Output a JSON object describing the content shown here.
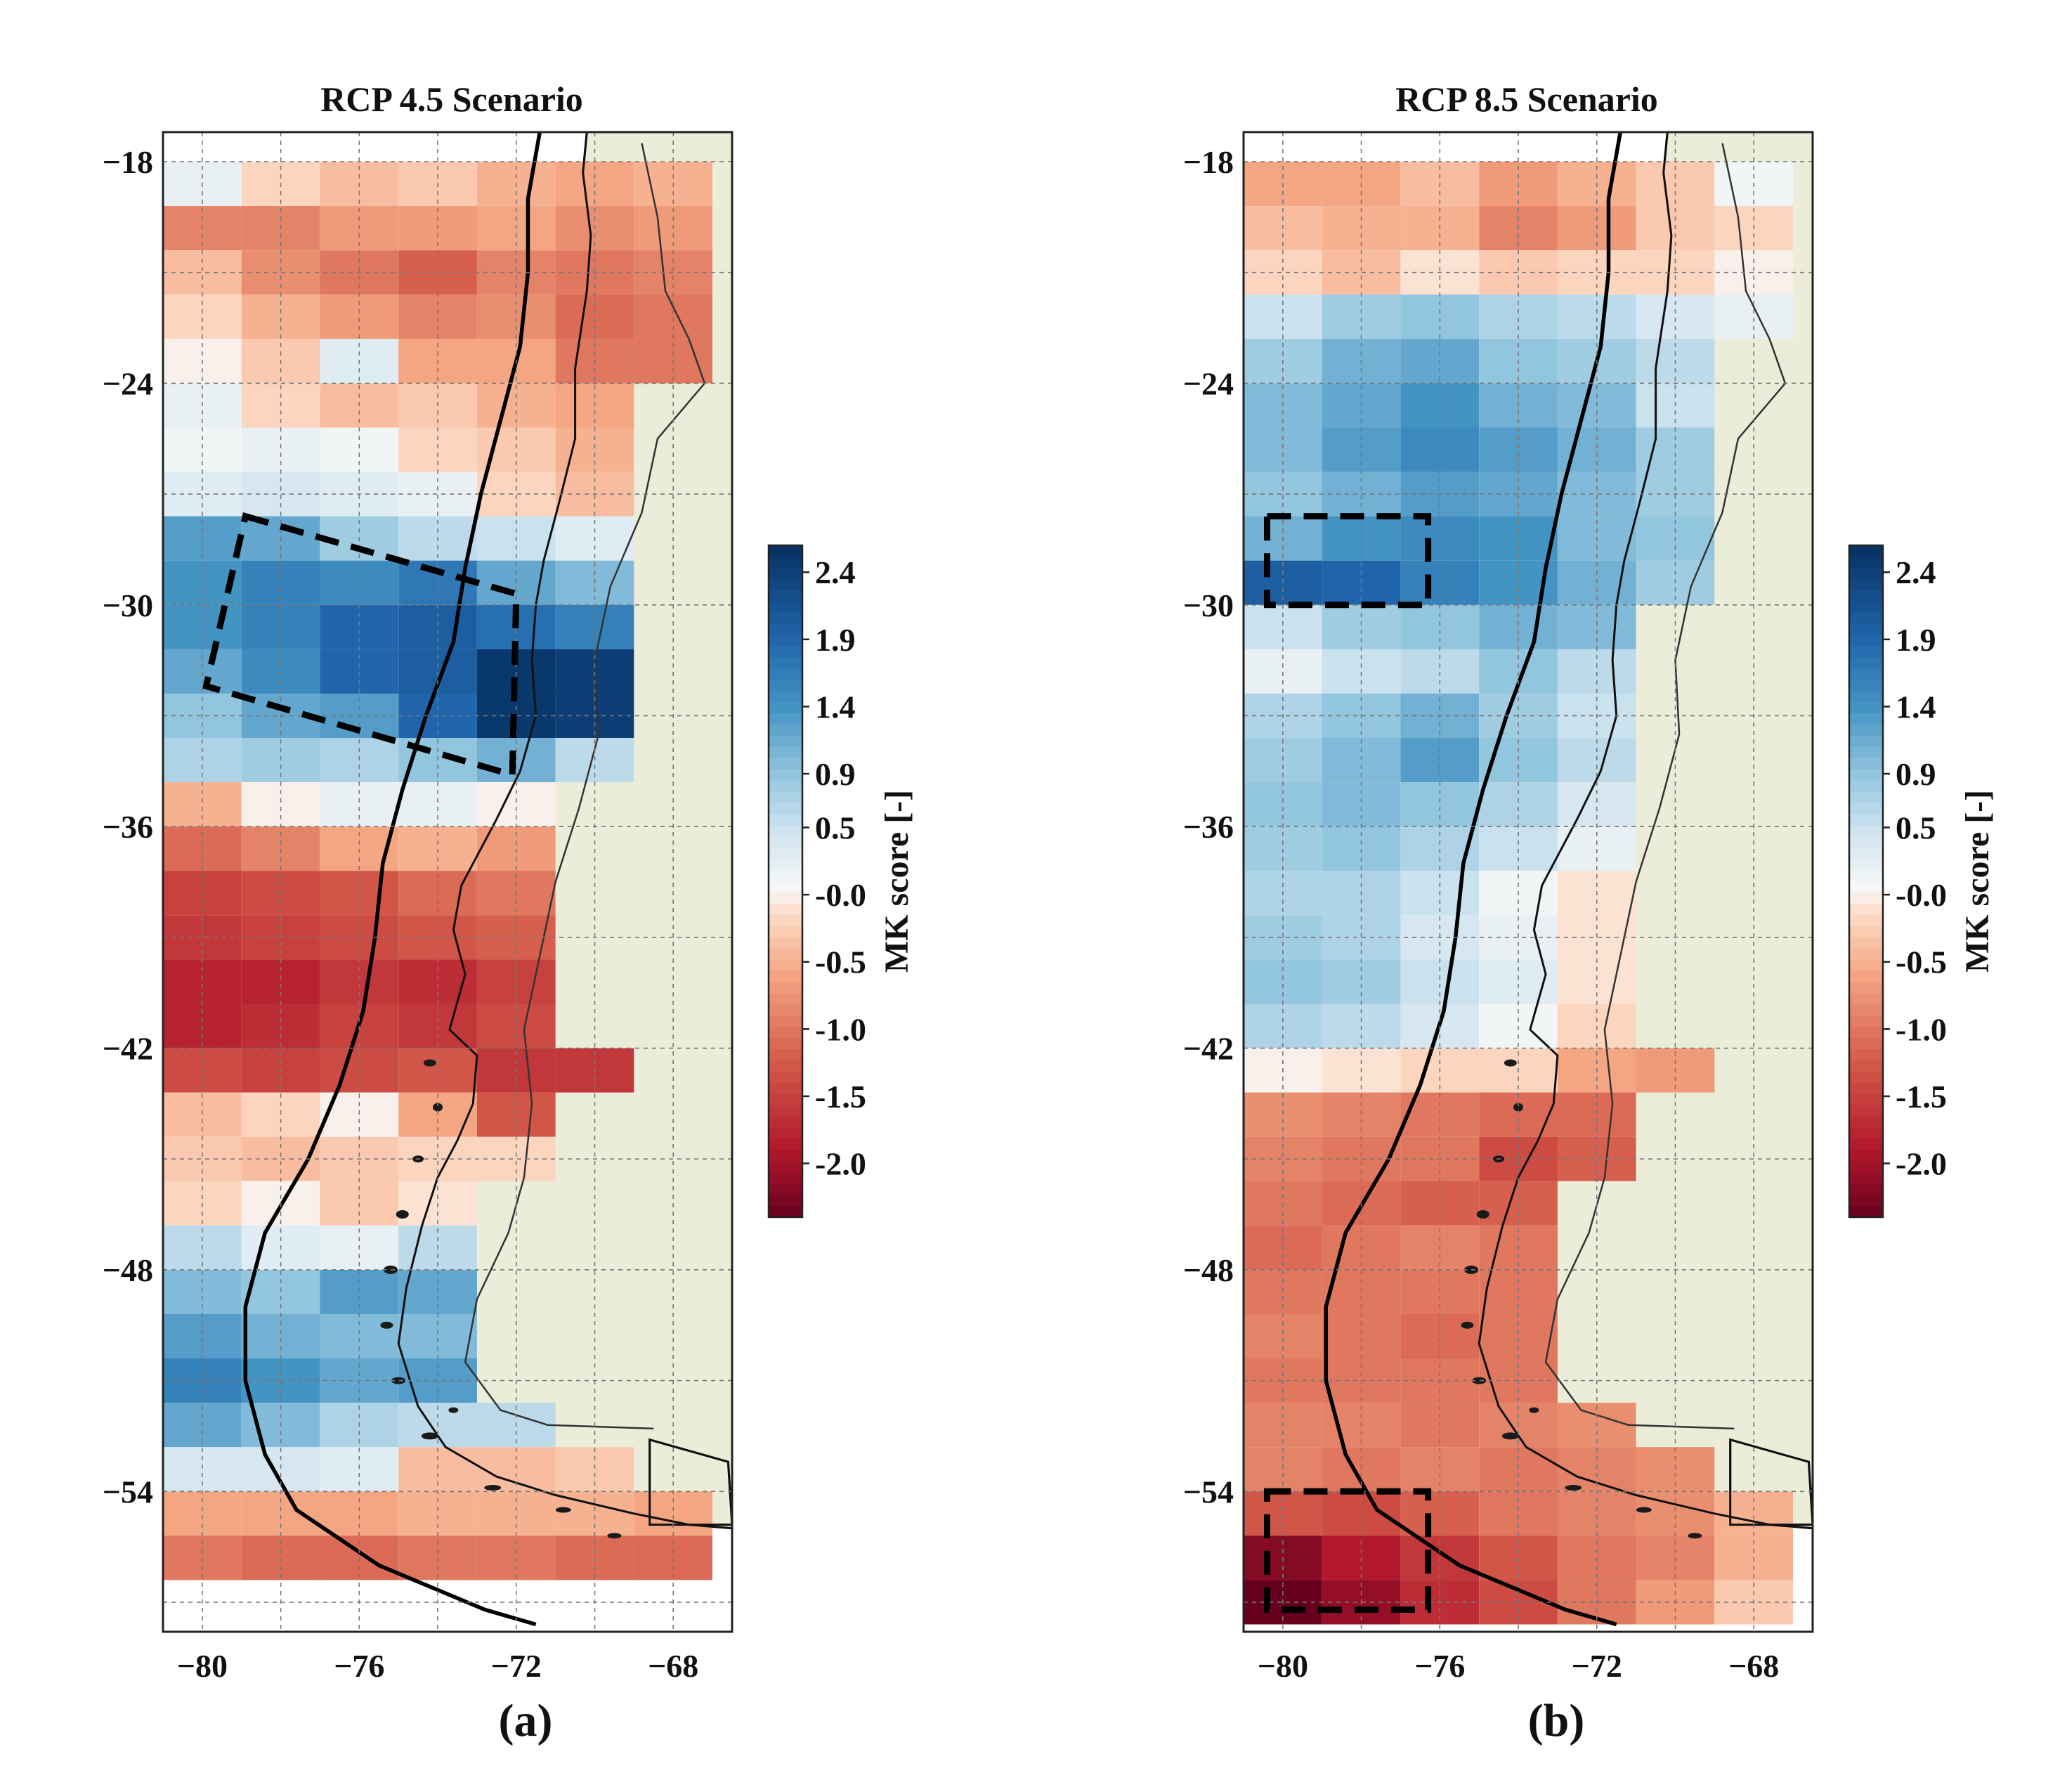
{
  "figure": {
    "panels": [
      {
        "label": "(a)",
        "title": "RCP 4.5 Scenario",
        "colorbar_label": "MK score [-]"
      },
      {
        "label": "(b)",
        "title": "RCP 8.5 Scenario",
        "colorbar_label": "MK score [-]"
      }
    ],
    "colors": {
      "land": "#ecedd9",
      "ocean": "#ffffff",
      "coast": "#111111",
      "frame": "#222222"
    }
  },
  "chart_data": [
    {
      "type": "heatmap",
      "title": "RCP 4.5 Scenario",
      "panel_label": "(a)",
      "colorbar_label": "MK score [-]",
      "colorbar_ticks": [
        "2.4",
        "1.9",
        "1.4",
        "0.9",
        "0.5",
        "-0.0",
        "-0.5",
        "-1.0",
        "-1.5",
        "-2.0"
      ],
      "colorbar_range": [
        -2.4,
        2.6
      ],
      "x_ticks": [
        "−80",
        "−76",
        "−72",
        "−68"
      ],
      "y_ticks": [
        "−18",
        "−24",
        "−30",
        "−36",
        "−42",
        "−48",
        "−54"
      ],
      "lon_range": [
        -81,
        -66.5
      ],
      "lat_range": [
        -57.8,
        -17.2
      ],
      "grid_step_lon": 2,
      "grid_step_lat": 1.2,
      "lat_bands": [
        {
          "lat": [
            -19.2,
            -18.0
          ],
          "values": [
            0.2,
            -0.2,
            -0.4,
            -0.3,
            -0.5,
            -0.6,
            -0.5
          ]
        },
        {
          "lat": [
            -20.4,
            -19.2
          ],
          "values": [
            -0.9,
            -0.9,
            -0.7,
            -0.7,
            -0.6,
            -0.8,
            -0.7
          ]
        },
        {
          "lat": [
            -21.6,
            -20.4
          ],
          "values": [
            -0.4,
            -0.8,
            -1.0,
            -1.2,
            -0.9,
            -1.0,
            -0.9
          ]
        },
        {
          "lat": [
            -22.8,
            -21.6
          ],
          "values": [
            -0.2,
            -0.5,
            -0.7,
            -0.9,
            -0.8,
            -1.1,
            -1.0
          ]
        },
        {
          "lat": [
            -24.0,
            -22.8
          ],
          "values": [
            0.0,
            -0.3,
            0.3,
            -0.6,
            -0.6,
            -1.0,
            -1.0
          ]
        },
        {
          "lat": [
            -25.2,
            -24.0
          ],
          "values": [
            0.2,
            -0.2,
            -0.4,
            -0.3,
            -0.5,
            -0.6,
            null
          ]
        },
        {
          "lat": [
            -26.4,
            -25.2
          ],
          "values": [
            0.1,
            0.2,
            0.1,
            -0.2,
            -0.3,
            -0.5,
            null
          ]
        },
        {
          "lat": [
            -27.6,
            -26.4
          ],
          "values": [
            0.3,
            0.4,
            0.3,
            0.2,
            -0.2,
            -0.4,
            null
          ]
        },
        {
          "lat": [
            -28.8,
            -27.6
          ],
          "values": [
            1.3,
            1.2,
            0.8,
            0.6,
            0.5,
            0.3,
            null
          ]
        },
        {
          "lat": [
            -30.0,
            -28.8
          ],
          "values": [
            1.4,
            1.6,
            1.5,
            1.7,
            1.2,
            1.0,
            null
          ]
        },
        {
          "lat": [
            -31.2,
            -30.0
          ],
          "values": [
            1.4,
            1.6,
            1.9,
            2.0,
            1.8,
            1.6,
            null
          ]
        },
        {
          "lat": [
            -32.4,
            -31.2
          ],
          "values": [
            1.2,
            1.5,
            1.9,
            2.0,
            2.5,
            2.4,
            null
          ]
        },
        {
          "lat": [
            -33.6,
            -32.4
          ],
          "values": [
            0.9,
            1.2,
            1.3,
            1.9,
            2.5,
            2.4,
            null
          ]
        },
        {
          "lat": [
            -34.8,
            -33.6
          ],
          "values": [
            0.7,
            0.8,
            0.7,
            0.9,
            1.1,
            0.6,
            null
          ]
        },
        {
          "lat": [
            -36.0,
            -34.8
          ],
          "values": [
            -0.5,
            0.0,
            0.2,
            0.2,
            0.0,
            null,
            null
          ]
        },
        {
          "lat": [
            -37.2,
            -36.0
          ],
          "values": [
            -1.1,
            -0.9,
            -0.6,
            -0.5,
            -0.7,
            null,
            null
          ]
        },
        {
          "lat": [
            -38.4,
            -37.2
          ],
          "values": [
            -1.5,
            -1.4,
            -1.3,
            -1.1,
            -1.0,
            null,
            null
          ]
        },
        {
          "lat": [
            -39.6,
            -38.4
          ],
          "values": [
            -1.6,
            -1.5,
            -1.4,
            -1.3,
            -1.2,
            null,
            null
          ]
        },
        {
          "lat": [
            -40.8,
            -39.6
          ],
          "values": [
            -1.8,
            -1.8,
            -1.6,
            -1.7,
            -1.5,
            null,
            null
          ]
        },
        {
          "lat": [
            -42.0,
            -40.8
          ],
          "values": [
            -1.8,
            -1.7,
            -1.5,
            -1.6,
            -1.4,
            null,
            null
          ]
        },
        {
          "lat": [
            -43.2,
            -42.0
          ],
          "values": [
            -1.4,
            -1.5,
            -1.4,
            -1.3,
            -1.6,
            -1.6,
            null
          ]
        },
        {
          "lat": [
            -44.4,
            -43.2
          ],
          "values": [
            -0.4,
            -0.2,
            0.0,
            -0.6,
            -1.3,
            null,
            null
          ]
        },
        {
          "lat": [
            -45.6,
            -44.4
          ],
          "values": [
            -0.3,
            -0.4,
            -0.3,
            -0.2,
            -0.2,
            null,
            null
          ]
        },
        {
          "lat": [
            -46.8,
            -45.6
          ],
          "values": [
            -0.2,
            0.0,
            -0.3,
            -0.1,
            null,
            null,
            null
          ]
        },
        {
          "lat": [
            -48.0,
            -46.8
          ],
          "values": [
            0.6,
            0.3,
            0.2,
            0.6,
            null,
            null,
            null
          ]
        },
        {
          "lat": [
            -49.2,
            -48.0
          ],
          "values": [
            1.0,
            0.9,
            1.3,
            1.2,
            null,
            null,
            null
          ]
        },
        {
          "lat": [
            -50.4,
            -49.2
          ],
          "values": [
            1.3,
            1.1,
            1.0,
            1.0,
            null,
            null,
            null
          ]
        },
        {
          "lat": [
            -51.6,
            -50.4
          ],
          "values": [
            1.6,
            1.4,
            1.2,
            1.3,
            null,
            null,
            null
          ]
        },
        {
          "lat": [
            -52.8,
            -51.6
          ],
          "values": [
            1.2,
            1.0,
            0.7,
            0.6,
            0.6,
            null,
            null
          ]
        },
        {
          "lat": [
            -54.0,
            -52.8
          ],
          "values": [
            0.4,
            0.4,
            0.3,
            -0.4,
            -0.4,
            -0.3,
            null
          ]
        },
        {
          "lat": [
            -55.2,
            -54.0
          ],
          "values": [
            -0.6,
            -0.6,
            -0.6,
            -0.5,
            -0.5,
            -0.5,
            -0.6
          ]
        },
        {
          "lat": [
            -56.4,
            -55.2
          ],
          "values": [
            -1.0,
            -1.1,
            -1.1,
            -1.0,
            -1.0,
            -1.1,
            -1.1
          ]
        }
      ],
      "highlight_regions": [
        {
          "shape": "rotated-rectangle",
          "corners": [
            [
              -78.9,
              -27.6
            ],
            [
              -72.0,
              -29.7
            ],
            [
              -72.1,
              -34.6
            ],
            [
              -79.9,
              -32.2
            ]
          ],
          "style": "dashed"
        }
      ]
    },
    {
      "type": "heatmap",
      "title": "RCP 8.5 Scenario",
      "panel_label": "(b)",
      "colorbar_label": "MK score [-]",
      "colorbar_ticks": [
        "2.4",
        "1.9",
        "1.4",
        "0.9",
        "0.5",
        "-0.0",
        "-0.5",
        "-1.0",
        "-1.5",
        "-2.0"
      ],
      "colorbar_range": [
        -2.4,
        2.6
      ],
      "x_ticks": [
        "−80",
        "−76",
        "−72",
        "−68"
      ],
      "y_ticks": [
        "−18",
        "−24",
        "−30",
        "−36",
        "−42",
        "−48",
        "−54"
      ],
      "lon_range": [
        -81,
        -66.5
      ],
      "lat_range": [
        -57.8,
        -17.2
      ],
      "grid_step_lon": 2,
      "grid_step_lat": 1.2,
      "lat_bands": [
        {
          "lat": [
            -19.2,
            -18.0
          ],
          "values": [
            -0.6,
            -0.6,
            -0.4,
            -0.7,
            -0.5,
            -0.3,
            0.1
          ]
        },
        {
          "lat": [
            -20.4,
            -19.2
          ],
          "values": [
            -0.4,
            -0.5,
            -0.5,
            -0.9,
            -0.7,
            -0.3,
            -0.2
          ]
        },
        {
          "lat": [
            -21.6,
            -20.4
          ],
          "values": [
            -0.2,
            -0.4,
            -0.1,
            -0.3,
            -0.2,
            -0.2,
            0.0
          ]
        },
        {
          "lat": [
            -22.8,
            -21.6
          ],
          "values": [
            0.5,
            0.8,
            0.9,
            0.7,
            0.6,
            0.4,
            0.2
          ]
        },
        {
          "lat": [
            -24.0,
            -22.8
          ],
          "values": [
            0.8,
            1.1,
            1.2,
            0.9,
            0.8,
            0.6,
            null
          ]
        },
        {
          "lat": [
            -25.2,
            -24.0
          ],
          "values": [
            1.0,
            1.2,
            1.4,
            1.1,
            1.0,
            0.5,
            null
          ]
        },
        {
          "lat": [
            -26.4,
            -25.2
          ],
          "values": [
            1.0,
            1.3,
            1.5,
            1.3,
            1.1,
            0.8,
            null
          ]
        },
        {
          "lat": [
            -27.6,
            -26.4
          ],
          "values": [
            0.9,
            1.1,
            1.3,
            1.2,
            1.0,
            0.8,
            null
          ]
        },
        {
          "lat": [
            -28.8,
            -27.6
          ],
          "values": [
            1.1,
            1.4,
            1.5,
            1.4,
            1.0,
            0.9,
            null
          ]
        },
        {
          "lat": [
            -30.0,
            -28.8
          ],
          "values": [
            2.0,
            1.9,
            1.6,
            1.4,
            1.1,
            0.8,
            null
          ]
        },
        {
          "lat": [
            -31.2,
            -30.0
          ],
          "values": [
            0.5,
            0.8,
            0.9,
            1.1,
            1.0,
            null,
            null
          ]
        },
        {
          "lat": [
            -32.4,
            -31.2
          ],
          "values": [
            0.2,
            0.5,
            0.6,
            0.9,
            0.6,
            null,
            null
          ]
        },
        {
          "lat": [
            -33.6,
            -32.4
          ],
          "values": [
            0.7,
            0.9,
            1.1,
            0.8,
            0.5,
            null,
            null
          ]
        },
        {
          "lat": [
            -34.8,
            -33.6
          ],
          "values": [
            0.8,
            1.0,
            1.3,
            0.9,
            0.6,
            null,
            null
          ]
        },
        {
          "lat": [
            -36.0,
            -34.8
          ],
          "values": [
            0.9,
            1.0,
            0.9,
            0.7,
            0.4,
            null,
            null
          ]
        },
        {
          "lat": [
            -37.2,
            -36.0
          ],
          "values": [
            0.8,
            0.9,
            0.7,
            0.5,
            0.2,
            null,
            null
          ]
        },
        {
          "lat": [
            -38.4,
            -37.2
          ],
          "values": [
            0.7,
            0.7,
            0.5,
            0.1,
            -0.1,
            null,
            null
          ]
        },
        {
          "lat": [
            -39.6,
            -38.4
          ],
          "values": [
            0.8,
            0.7,
            0.4,
            0.2,
            -0.1,
            null,
            null
          ]
        },
        {
          "lat": [
            -40.8,
            -39.6
          ],
          "values": [
            0.9,
            0.8,
            0.5,
            0.3,
            -0.1,
            null,
            null
          ]
        },
        {
          "lat": [
            -42.0,
            -40.8
          ],
          "values": [
            0.7,
            0.6,
            0.4,
            0.1,
            -0.2,
            null,
            null
          ]
        },
        {
          "lat": [
            -43.2,
            -42.0
          ],
          "values": [
            0.0,
            -0.1,
            -0.2,
            -0.2,
            -0.6,
            -0.7,
            null
          ]
        },
        {
          "lat": [
            -44.4,
            -43.2
          ],
          "values": [
            -0.8,
            -0.9,
            -1.0,
            -1.1,
            -1.1,
            null,
            null
          ]
        },
        {
          "lat": [
            -45.6,
            -44.4
          ],
          "values": [
            -0.9,
            -1.0,
            -1.0,
            -1.4,
            -1.2,
            null,
            null
          ]
        },
        {
          "lat": [
            -46.8,
            -45.6
          ],
          "values": [
            -1.0,
            -1.1,
            -1.2,
            -1.2,
            null,
            null,
            null
          ]
        },
        {
          "lat": [
            -48.0,
            -46.8
          ],
          "values": [
            -1.1,
            -1.0,
            -0.9,
            -1.0,
            null,
            null,
            null
          ]
        },
        {
          "lat": [
            -49.2,
            -48.0
          ],
          "values": [
            -1.0,
            -1.0,
            -1.0,
            -1.0,
            null,
            null,
            null
          ]
        },
        {
          "lat": [
            -50.4,
            -49.2
          ],
          "values": [
            -0.9,
            -1.0,
            -1.1,
            -1.0,
            null,
            null,
            null
          ]
        },
        {
          "lat": [
            -51.6,
            -50.4
          ],
          "values": [
            -1.0,
            -1.0,
            -1.0,
            -1.0,
            null,
            null,
            null
          ]
        },
        {
          "lat": [
            -52.8,
            -51.6
          ],
          "values": [
            -0.9,
            -0.9,
            -1.0,
            -0.9,
            -0.8,
            null,
            null
          ]
        },
        {
          "lat": [
            -54.0,
            -52.8
          ],
          "values": [
            -0.9,
            -1.0,
            -0.9,
            -1.0,
            -0.9,
            -0.8,
            null
          ]
        },
        {
          "lat": [
            -55.2,
            -54.0
          ],
          "values": [
            -1.3,
            -1.4,
            -1.2,
            -1.0,
            -0.9,
            -0.8,
            -0.5
          ]
        },
        {
          "lat": [
            -56.4,
            -55.2
          ],
          "values": [
            -2.2,
            -1.9,
            -1.6,
            -1.3,
            -1.0,
            -0.9,
            -0.5
          ]
        },
        {
          "lat": [
            -57.6,
            -56.4
          ],
          "values": [
            -2.4,
            -2.1,
            -1.7,
            -1.4,
            -1.0,
            -0.7,
            -0.3
          ]
        }
      ],
      "highlight_regions": [
        {
          "shape": "rectangle",
          "corners": [
            [
              -80.4,
              -27.6
            ],
            [
              -76.3,
              -27.6
            ],
            [
              -76.3,
              -30.0
            ],
            [
              -80.4,
              -30.0
            ]
          ],
          "style": "dashed"
        },
        {
          "shape": "rectangle",
          "corners": [
            [
              -80.4,
              -54.0
            ],
            [
              -76.3,
              -54.0
            ],
            [
              -76.3,
              -57.2
            ],
            [
              -80.4,
              -57.2
            ]
          ],
          "style": "dashed"
        }
      ]
    }
  ]
}
